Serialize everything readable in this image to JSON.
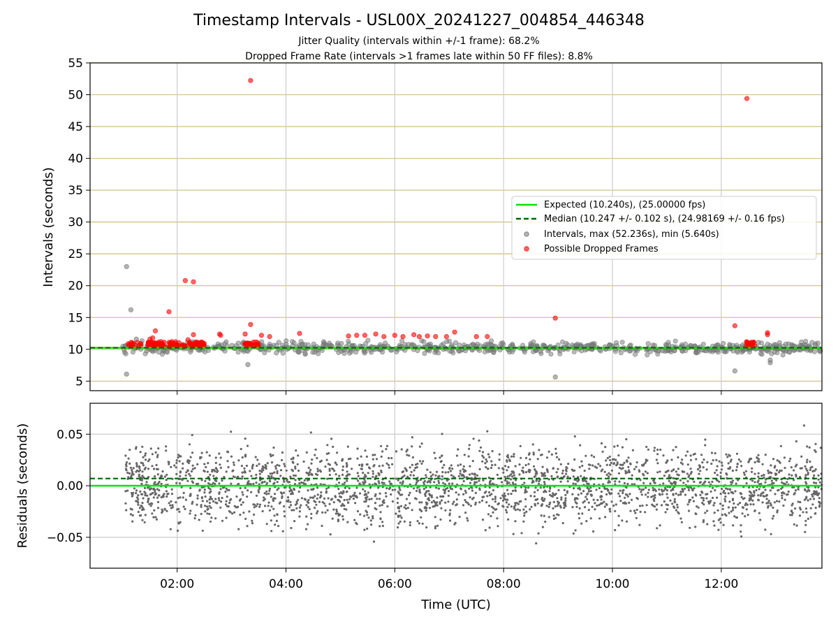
{
  "figure": {
    "title": "Timestamp Intervals - USL00X_20241227_004854_446348",
    "subtitle_1": "Jitter Quality (intervals within +/-1 frame): 68.2%",
    "subtitle_2": "Dropped Frame Rate (intervals >1 frames late within 50 FF files): 8.8%"
  },
  "chart_data": [
    {
      "type": "scatter",
      "panel": "top",
      "ylabel": "Intervals (seconds)",
      "xlim_hours": [
        0.4,
        13.85
      ],
      "ylim": [
        3.5,
        55
      ],
      "yticks": [
        5,
        10,
        15,
        20,
        25,
        30,
        35,
        40,
        45,
        50,
        55
      ],
      "ytick_labels": [
        "5",
        "10",
        "15",
        "20",
        "25",
        "30",
        "35",
        "40",
        "45",
        "50",
        "55"
      ],
      "grid": "on",
      "legend_placement": "center-right",
      "expected_line": {
        "label": "Expected (10.240s), (25.00000 fps)",
        "value": 10.24,
        "color": "#00e600"
      },
      "median_line": {
        "label": "Median (10.247 +/- 0.102 s), (24.98169 +/- 0.16 fps)",
        "value": 10.247,
        "color": "#006400"
      },
      "series": [
        {
          "name": "Intervals, max (52.236s), min (5.640s)",
          "color": "#808080",
          "outliers": [
            [
              1.07,
              23.0
            ],
            [
              1.15,
              16.2
            ],
            [
              1.07,
              6.1
            ],
            [
              3.3,
              7.6
            ],
            [
              3.55,
              10.6
            ],
            [
              8.95,
              5.64
            ],
            [
              12.25,
              6.6
            ],
            [
              12.9,
              7.9
            ],
            [
              12.9,
              8.3
            ],
            [
              1.25,
              11.6
            ]
          ],
          "band": {
            "x_from": 1.0,
            "x_to": 13.85,
            "y_center": 10.24,
            "spread": 1.6,
            "count": 750
          }
        },
        {
          "name": "Possible Dropped Frames",
          "color": "#ff0000",
          "points": [
            [
              3.35,
              52.236
            ],
            [
              12.47,
              49.4
            ],
            [
              2.15,
              20.8
            ],
            [
              2.3,
              20.6
            ],
            [
              1.85,
              15.9
            ],
            [
              8.95,
              14.9
            ],
            [
              12.25,
              13.7
            ],
            [
              3.35,
              13.9
            ],
            [
              1.6,
              12.9
            ],
            [
              2.3,
              12.3
            ],
            [
              2.78,
              12.4
            ],
            [
              3.25,
              12.4
            ],
            [
              3.55,
              12.2
            ],
            [
              3.7,
              12.0
            ],
            [
              4.25,
              12.5
            ],
            [
              5.15,
              12.1
            ],
            [
              5.3,
              12.2
            ],
            [
              5.45,
              12.2
            ],
            [
              5.65,
              12.4
            ],
            [
              5.8,
              12.0
            ],
            [
              6.0,
              12.2
            ],
            [
              6.15,
              12.0
            ],
            [
              6.35,
              12.3
            ],
            [
              6.45,
              12.0
            ],
            [
              6.6,
              12.1
            ],
            [
              6.75,
              12.0
            ],
            [
              6.95,
              12.0
            ],
            [
              7.1,
              12.7
            ],
            [
              7.5,
              12.0
            ],
            [
              7.7,
              12.0
            ],
            [
              12.85,
              12.6
            ],
            [
              12.85,
              12.3
            ],
            [
              1.5,
              11.6
            ],
            [
              1.55,
              11.8
            ],
            [
              2.2,
              11.5
            ],
            [
              2.8,
              12.2
            ],
            [
              1.7,
              11.2
            ],
            [
              2.4,
              11.0
            ]
          ],
          "bottom_clusters": [
            {
              "x_from": 1.08,
              "x_to": 1.35,
              "count": 14
            },
            {
              "x_from": 1.45,
              "x_to": 1.8,
              "count": 40
            },
            {
              "x_from": 1.85,
              "x_to": 2.05,
              "count": 24
            },
            {
              "x_from": 2.1,
              "x_to": 2.5,
              "count": 40
            },
            {
              "x_from": 3.25,
              "x_to": 3.5,
              "count": 22
            },
            {
              "x_from": 12.45,
              "x_to": 12.62,
              "count": 18
            }
          ]
        }
      ]
    },
    {
      "type": "scatter",
      "panel": "bottom",
      "xlabel": "Time (UTC)",
      "ylabel": "Residuals (seconds)",
      "xlim_hours": [
        0.4,
        13.85
      ],
      "ylim": [
        -0.08,
        0.08
      ],
      "xticks_hours": [
        2,
        4,
        6,
        8,
        10,
        12
      ],
      "xtick_labels": [
        "02:00",
        "04:00",
        "06:00",
        "08:00",
        "10:00",
        "12:00"
      ],
      "yticks": [
        -0.05,
        0.0,
        0.05
      ],
      "ytick_labels": [
        "−0.05",
        "0.00",
        "0.05"
      ],
      "grid": "on",
      "expected_line": {
        "value": 0.0,
        "color": "#00e600"
      },
      "median_line": {
        "value": 0.007,
        "color": "#006400"
      },
      "series": [
        {
          "color": "#666666",
          "band": {
            "x_from": 1.05,
            "x_to": 13.85,
            "y_center": 0.0,
            "spread": 0.075,
            "count": 2600
          }
        }
      ]
    }
  ]
}
